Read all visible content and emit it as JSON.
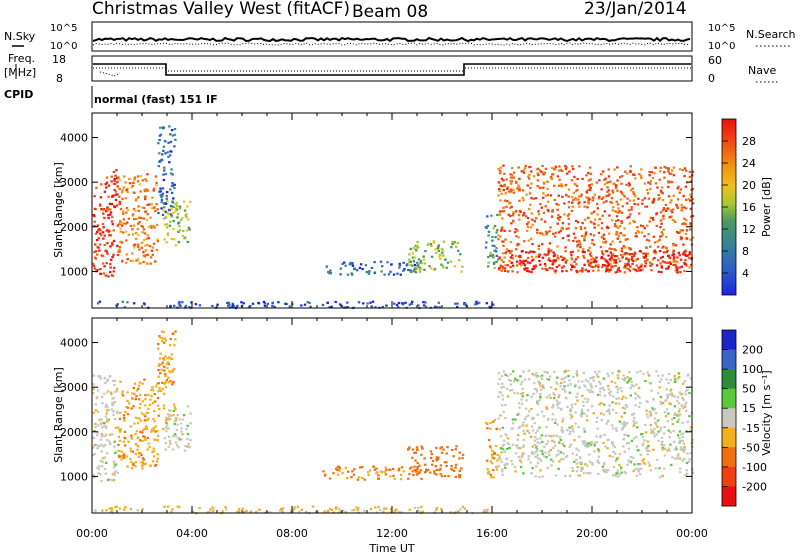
{
  "header": {
    "title": "Christmas Valley West (fitACF)",
    "beam": "Beam 08",
    "date": "23/Jan/2014"
  },
  "top_panels": {
    "nsky_label": "N.Sky",
    "nsky_ticks": [
      "10^5",
      "10^0"
    ],
    "nsearch_label": "N.Search",
    "nsearch_ticks": [
      "10^5",
      "10^0"
    ],
    "freq_label_1": "Freq.",
    "freq_label_2": "[MHz]",
    "freq_ticks": [
      "18",
      "8"
    ],
    "nave_label": "Nave",
    "nave_ticks": [
      "60",
      "0"
    ],
    "cpid_label": "CPID",
    "cpid_text": "normal (fast) 151 IF"
  },
  "chart_data": [
    {
      "type": "heatmap",
      "name": "power",
      "ylabel": "Slant Range [km]",
      "xlabel": "",
      "yticks": [
        1000,
        2000,
        3000,
        4000
      ],
      "ylim": [
        180,
        4550
      ],
      "xlim_hours": [
        0,
        24
      ],
      "colorbar_label": "Power [dB]",
      "colorbar_ticks": [
        4,
        8,
        12,
        16,
        20,
        24,
        28
      ],
      "colorbar_colors": [
        "#1a24e0",
        "#2e5cc9",
        "#38809a",
        "#4a9a5e",
        "#a8c832",
        "#f0c020",
        "#f09010",
        "#f06010",
        "#f03010",
        "#e81010"
      ],
      "regions_note_hours_km": [
        {
          "t": [
            0.0,
            1.0
          ],
          "r": [
            900,
            3300
          ],
          "level": 27
        },
        {
          "t": [
            1.0,
            2.6
          ],
          "r": [
            1200,
            3200
          ],
          "level": 22
        },
        {
          "t": [
            2.6,
            3.3
          ],
          "r": [
            2200,
            4300
          ],
          "level": 6
        },
        {
          "t": [
            2.8,
            3.9
          ],
          "r": [
            1600,
            2600
          ],
          "level": 14
        },
        {
          "t": [
            9.2,
            13.2
          ],
          "r": [
            950,
            1250
          ],
          "level": 6
        },
        {
          "t": [
            12.6,
            14.8
          ],
          "r": [
            1000,
            1700
          ],
          "level": 14
        },
        {
          "t": [
            15.7,
            16.2
          ],
          "r": [
            1000,
            2300
          ],
          "level": 10
        },
        {
          "t": [
            16.2,
            24.0
          ],
          "r": [
            1000,
            3400
          ],
          "level": 24
        },
        {
          "t": [
            16.2,
            24.0
          ],
          "r": [
            1000,
            1500
          ],
          "level": 29
        },
        {
          "t": [
            0.0,
            16.0
          ],
          "r": [
            200,
            350
          ],
          "level": 5
        }
      ]
    },
    {
      "type": "heatmap",
      "name": "velocity",
      "ylabel": "Slant Range [km]",
      "xlabel": "Time UT",
      "yticks": [
        1000,
        2000,
        3000,
        4000
      ],
      "ylim": [
        180,
        4550
      ],
      "xticks": [
        "00:00",
        "04:00",
        "08:00",
        "12:00",
        "16:00",
        "20:00",
        "00:00"
      ],
      "xlim_hours": [
        0,
        24
      ],
      "colorbar_label": "Velocity [m s⁻¹]",
      "colorbar_ticks": [
        "200",
        "100",
        "50",
        "15",
        "-15",
        "-50",
        "-100",
        "-200"
      ],
      "colorbar_colors": [
        "#1a24c8",
        "#3c64c8",
        "#2c8c3c",
        "#5cc83c",
        "#c8c8c0",
        "#f0b020",
        "#f07010",
        "#f04010",
        "#e81010"
      ],
      "regions_note_hours_km": [
        {
          "t": [
            0.0,
            1.0
          ],
          "r": [
            900,
            3300
          ],
          "v": 0
        },
        {
          "t": [
            1.0,
            2.6
          ],
          "r": [
            1200,
            3200
          ],
          "v": -40
        },
        {
          "t": [
            2.6,
            3.3
          ],
          "r": [
            2200,
            4300
          ],
          "v": -40
        },
        {
          "t": [
            2.8,
            3.9
          ],
          "r": [
            1600,
            2600
          ],
          "v": 0
        },
        {
          "t": [
            9.2,
            13.2
          ],
          "r": [
            950,
            1250
          ],
          "v": -60
        },
        {
          "t": [
            12.6,
            14.8
          ],
          "r": [
            1000,
            1700
          ],
          "v": -80
        },
        {
          "t": [
            15.7,
            16.2
          ],
          "r": [
            1000,
            2300
          ],
          "v": -40
        },
        {
          "t": [
            16.2,
            24.0
          ],
          "r": [
            1000,
            3400
          ],
          "v": 0
        },
        {
          "t": [
            0.0,
            16.0
          ],
          "r": [
            200,
            350
          ],
          "v": -20
        }
      ]
    }
  ]
}
